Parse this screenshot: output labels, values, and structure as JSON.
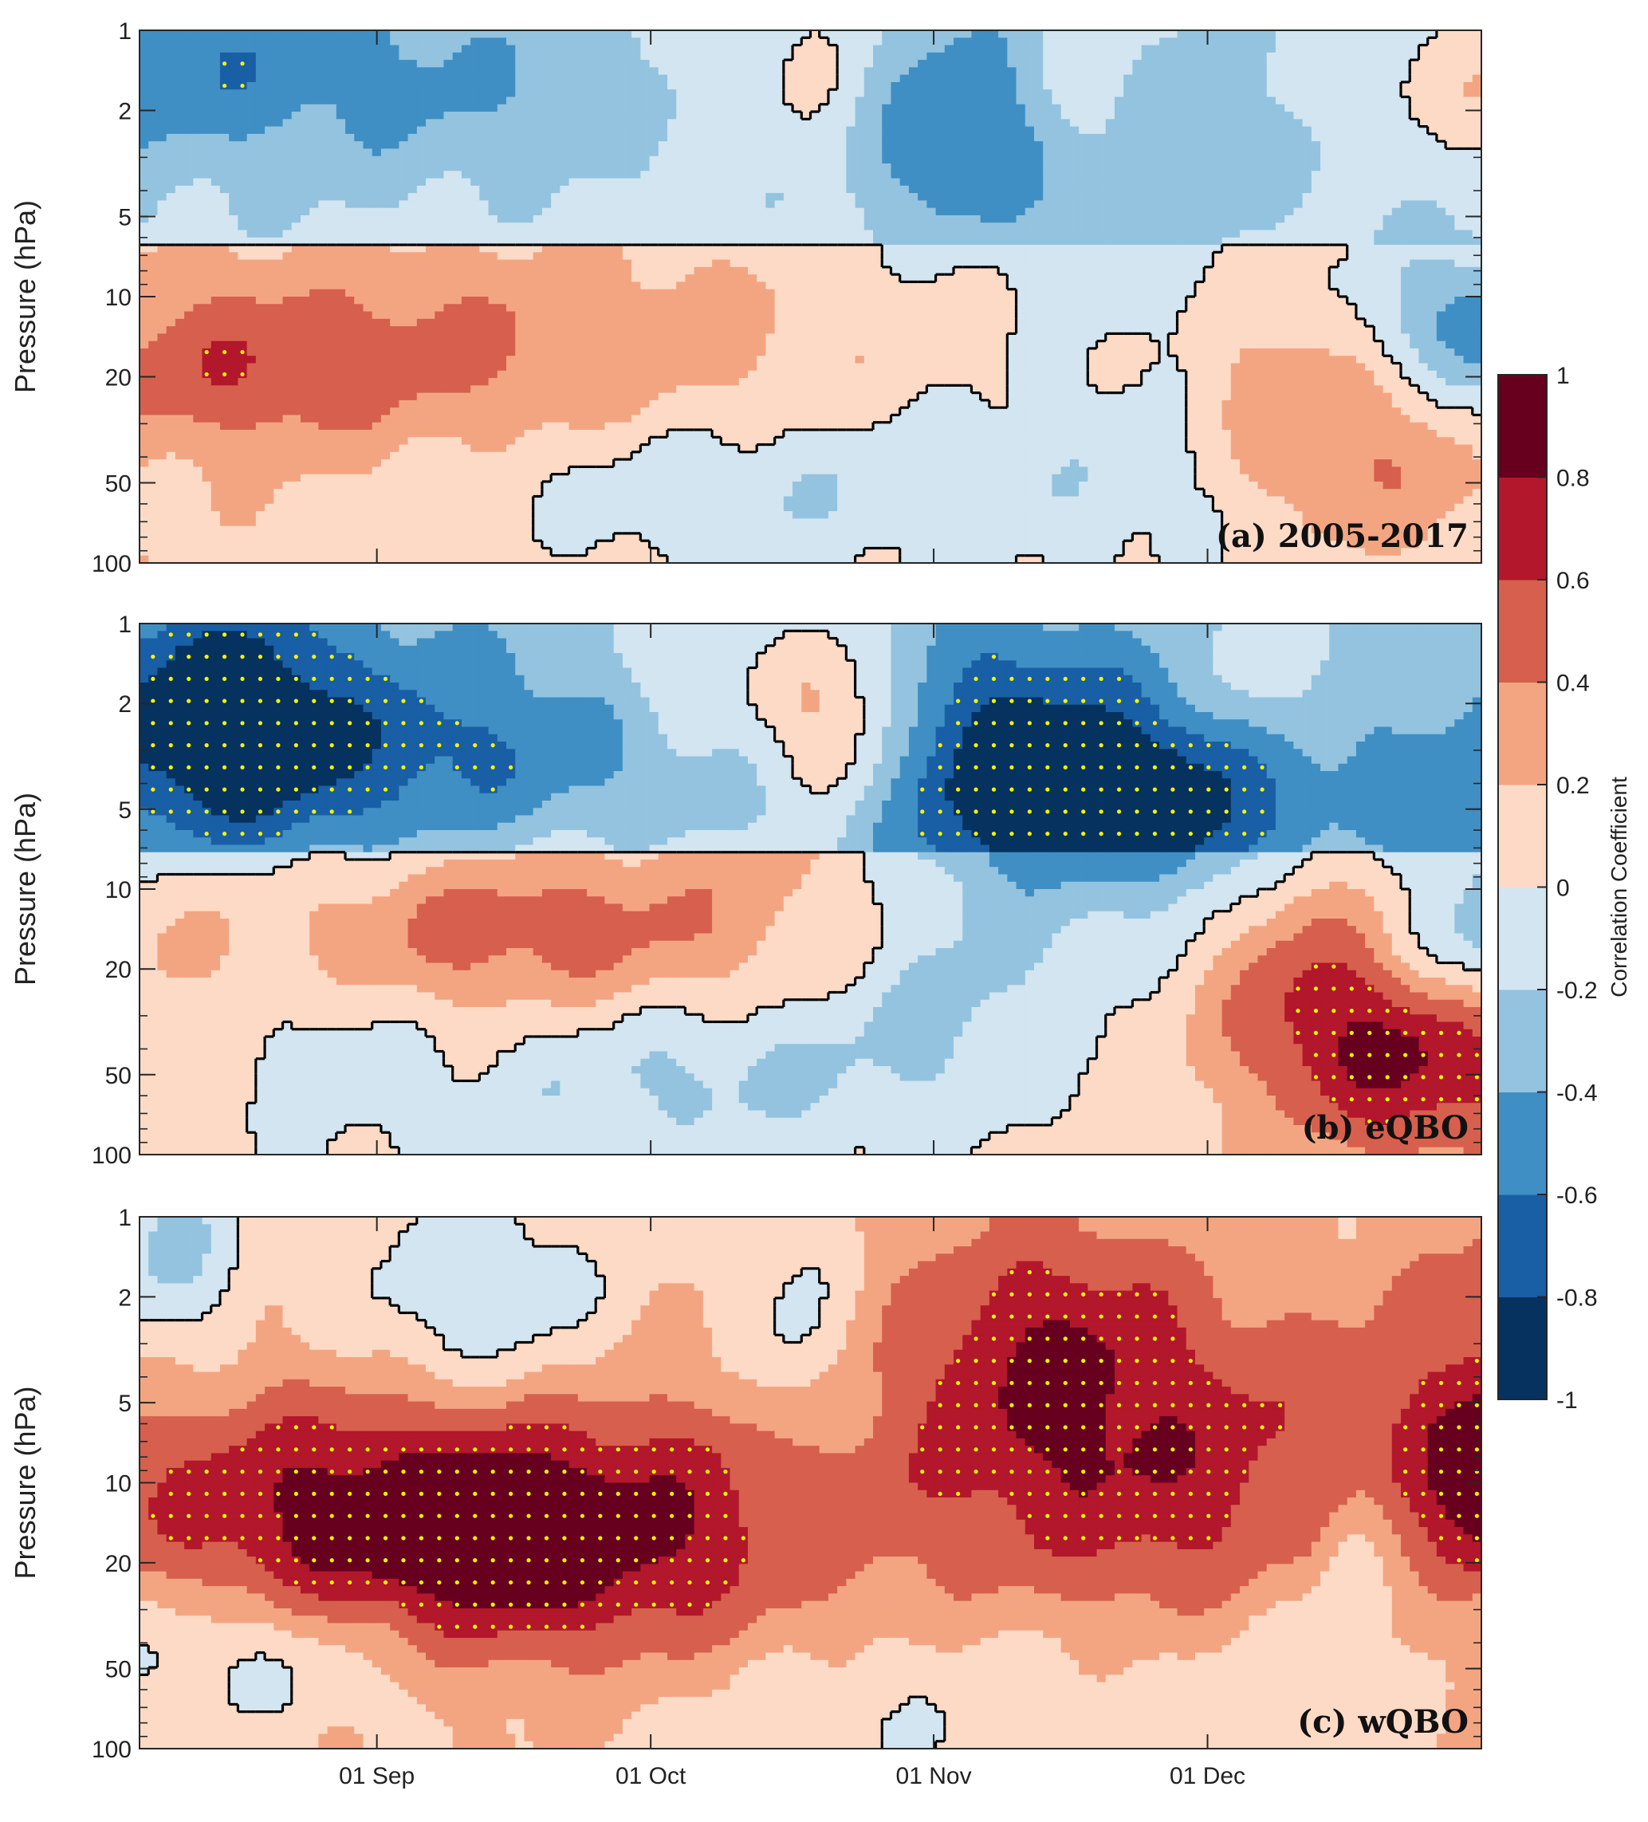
{
  "chart_data": {
    "type": "heatmap",
    "colormap_note_levels": [
      -1,
      -0.8,
      -0.6,
      -0.4,
      -0.2,
      0,
      0.2,
      0.4,
      0.6,
      0.8,
      1
    ],
    "colors": [
      "#06325f",
      "#195fa5",
      "#3f8fc4",
      "#93c3df",
      "#d2e5f0",
      "#fcdac6",
      "#f3a582",
      "#d6604d",
      "#b2172b",
      "#67001f"
    ],
    "colorbar": {
      "label": "Correlation Coefficient",
      "ticks": [
        "1",
        "0.8",
        "0.6",
        "0.4",
        "0.2",
        "0",
        "-0.2",
        "-0.4",
        "-0.6",
        "-0.8",
        "-1"
      ]
    },
    "y": {
      "label": "Pressure (hPa)",
      "scale": "log",
      "reversed": true,
      "range": [
        1,
        100
      ],
      "ticks": [
        "1",
        "2",
        "5",
        "10",
        "20",
        "50",
        "100"
      ]
    },
    "x": {
      "type": "date",
      "range": [
        "2000-08-06",
        "2000-12-31"
      ],
      "ticks": [
        "01 Sep",
        "01 Oct",
        "01 Nov",
        "01 Dec"
      ]
    },
    "panels": [
      {
        "label": "(a) 2005-2017"
      },
      {
        "label": "(b) eQBO"
      },
      {
        "label": "(c) wQBO"
      }
    ]
  }
}
